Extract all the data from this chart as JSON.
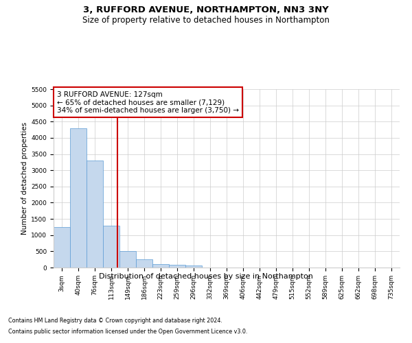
{
  "title": "3, RUFFORD AVENUE, NORTHAMPTON, NN3 3NY",
  "subtitle": "Size of property relative to detached houses in Northampton",
  "xlabel": "Distribution of detached houses by size in Northampton",
  "ylabel": "Number of detached properties",
  "footnote1": "Contains HM Land Registry data © Crown copyright and database right 2024.",
  "footnote2": "Contains public sector information licensed under the Open Government Licence v3.0.",
  "categories": [
    "3sqm",
    "40sqm",
    "76sqm",
    "113sqm",
    "149sqm",
    "186sqm",
    "223sqm",
    "259sqm",
    "296sqm",
    "332sqm",
    "369sqm",
    "406sqm",
    "442sqm",
    "479sqm",
    "515sqm",
    "552sqm",
    "589sqm",
    "625sqm",
    "662sqm",
    "698sqm",
    "735sqm"
  ],
  "values": [
    1250,
    4300,
    3300,
    1300,
    500,
    250,
    110,
    75,
    55,
    0,
    0,
    0,
    0,
    0,
    0,
    0,
    0,
    0,
    0,
    0,
    0
  ],
  "bar_color": "#c5d8ed",
  "bar_edge_color": "#5b9bd5",
  "grid_color": "#cccccc",
  "background_color": "#ffffff",
  "plot_bg_color": "#ffffff",
  "marker_line_color": "#cc0000",
  "annotation_text": "3 RUFFORD AVENUE: 127sqm\n← 65% of detached houses are smaller (7,129)\n34% of semi-detached houses are larger (3,750) →",
  "annotation_box_color": "#ffffff",
  "annotation_border_color": "#cc0000",
  "ylim": [
    0,
    5500
  ],
  "yticks": [
    0,
    500,
    1000,
    1500,
    2000,
    2500,
    3000,
    3500,
    4000,
    4500,
    5000,
    5500
  ],
  "title_fontsize": 9.5,
  "subtitle_fontsize": 8.5,
  "xlabel_fontsize": 8,
  "ylabel_fontsize": 7.5,
  "tick_fontsize": 6.5,
  "annotation_fontsize": 7.5,
  "footnote_fontsize": 5.8
}
